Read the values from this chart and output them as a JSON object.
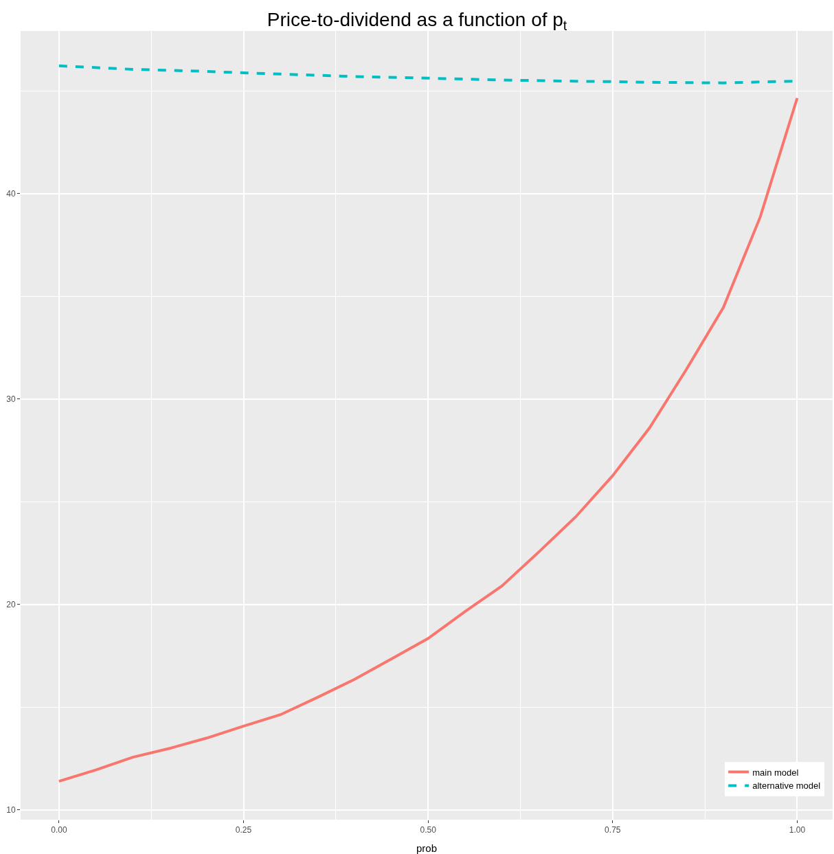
{
  "chart_data": {
    "type": "line",
    "title": "Price-to-dividend as a function of p$_{t}$",
    "xlabel": "prob",
    "xlim": [
      -0.052,
      1.048
    ],
    "ylim": [
      9.53,
      47.92
    ],
    "xticks": [
      {
        "value": 0,
        "label": "0.00"
      },
      {
        "value": 0.125,
        "label": null
      },
      {
        "value": 0.25,
        "label": "0.25"
      },
      {
        "value": 0.375,
        "label": null
      },
      {
        "value": 0.5,
        "label": "0.50"
      },
      {
        "value": 0.625,
        "label": null
      },
      {
        "value": 0.75,
        "label": "0.75"
      },
      {
        "value": 0.875,
        "label": null
      },
      {
        "value": 1,
        "label": "1.00"
      }
    ],
    "yticks": [
      10,
      {
        "value": 15,
        "label": null
      },
      20,
      {
        "value": 25,
        "label": null
      },
      30,
      {
        "value": 35,
        "label": null
      },
      40,
      {
        "value": 45,
        "label": null
      }
    ],
    "grid": true,
    "legend": "bottom right",
    "series": [
      {
        "name": "main model",
        "color": "#f8766d",
        "line_style": "solid",
        "x": [
          0,
          0.05,
          0.1,
          0.15,
          0.2,
          0.25,
          0.3,
          0.35,
          0.4,
          0.45,
          0.5,
          0.55,
          0.6,
          0.65,
          0.7,
          0.75,
          0.8,
          0.85,
          0.9,
          0.95,
          1.0
        ],
        "values": [
          11.4,
          11.95,
          12.57,
          13.0,
          13.5,
          14.08,
          14.64,
          15.48,
          16.35,
          17.35,
          18.35,
          19.66,
          20.9,
          22.56,
          24.27,
          26.27,
          28.6,
          31.45,
          34.46,
          38.87,
          44.65
        ]
      },
      {
        "name": "alternative model",
        "color": "#00bfc4",
        "line_style": "dashed",
        "x": [
          0,
          0.1,
          0.2,
          0.25,
          0.3,
          0.4,
          0.5,
          0.6,
          0.7,
          0.75,
          0.8,
          0.9,
          1.0
        ],
        "values": [
          46.22,
          46.05,
          45.95,
          45.88,
          45.82,
          45.7,
          45.62,
          45.53,
          45.47,
          45.45,
          45.42,
          45.39,
          45.48
        ]
      }
    ]
  }
}
